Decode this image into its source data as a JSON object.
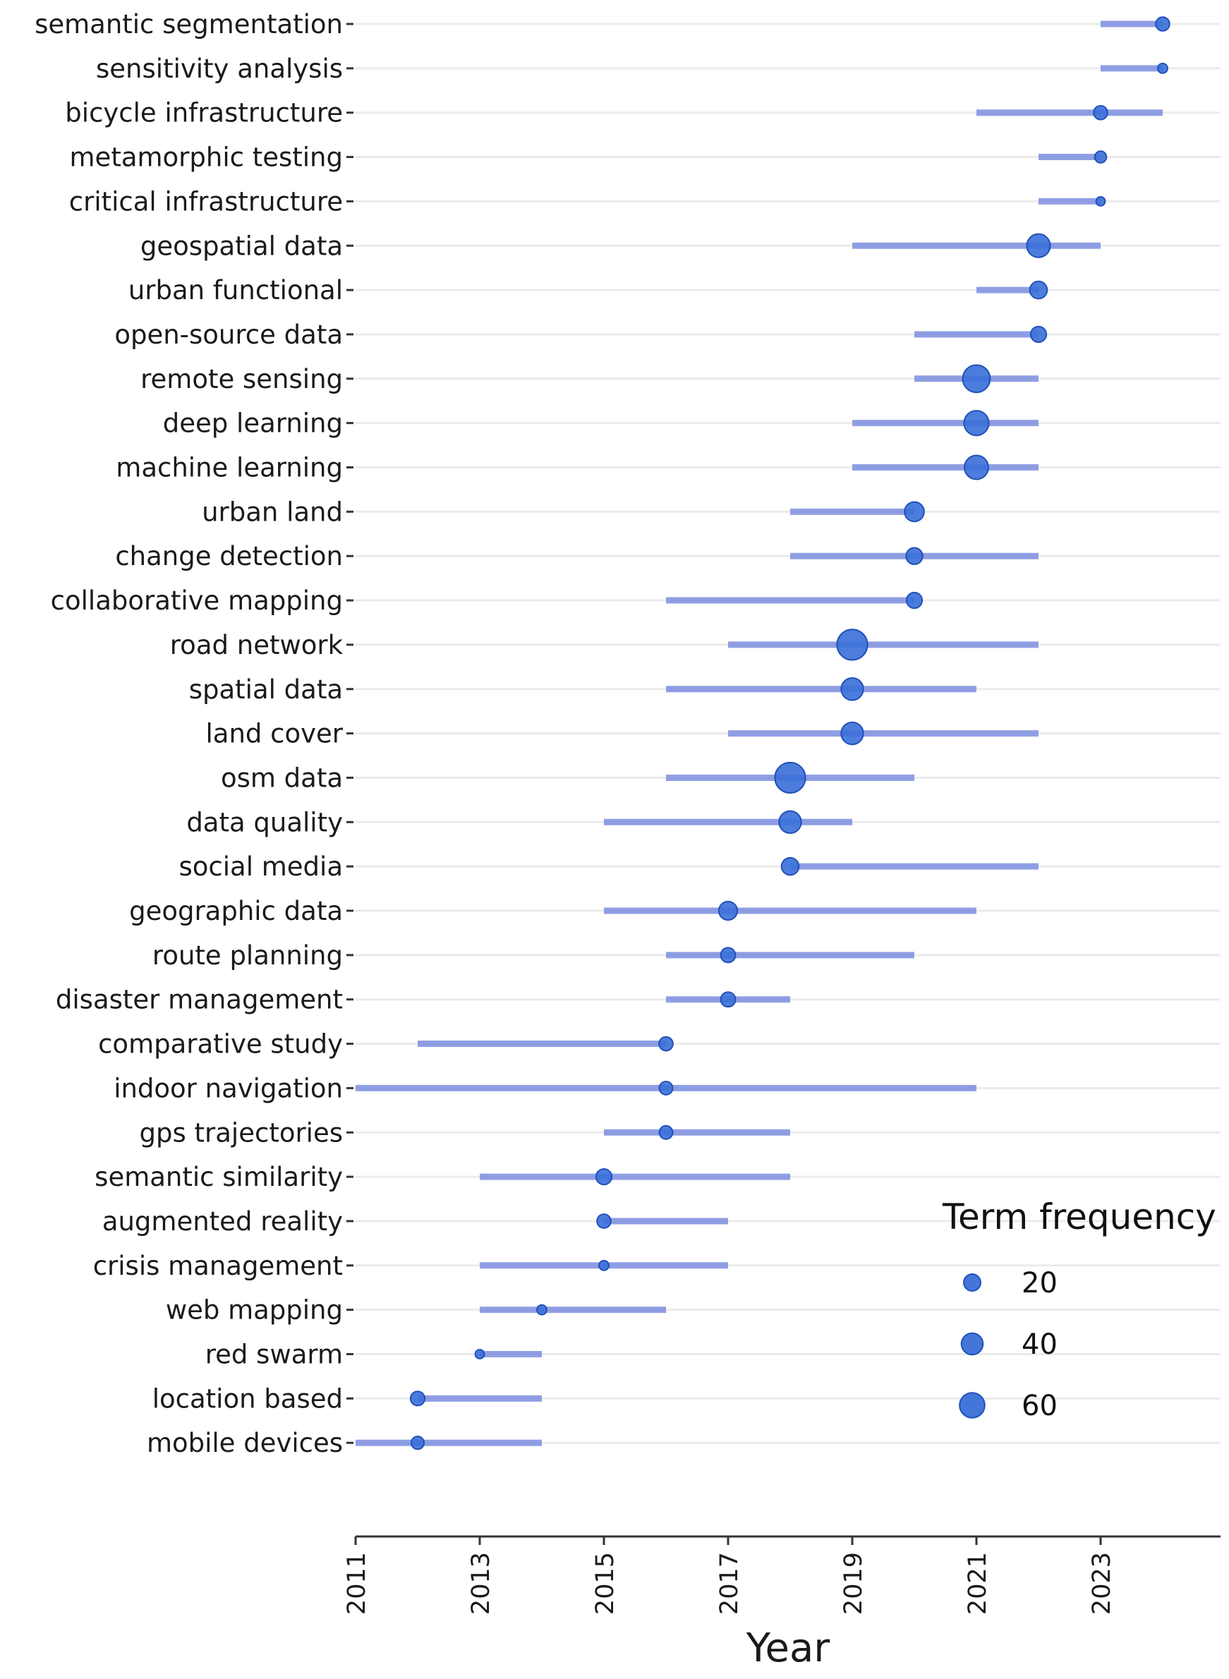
{
  "chart_data": {
    "type": "scatter",
    "xlabel": "Year",
    "x_ticks": [
      2011,
      2013,
      2015,
      2017,
      2019,
      2021,
      2023
    ],
    "xlim": [
      2011,
      2024.9
    ],
    "legend": {
      "title": "Term frequency",
      "position": "bottom-right",
      "entries": [
        {
          "label": "20",
          "value": 20
        },
        {
          "label": "40",
          "value": 40
        },
        {
          "label": "60",
          "value": 60
        }
      ]
    },
    "colors": {
      "bubble": "#3a6fd8",
      "bubble_stroke": "#2150b8",
      "range": "#7d8fe0",
      "grid": "#ebebeb",
      "axis": "#333333"
    },
    "terms": [
      {
        "term": "semantic segmentation",
        "start": 2023,
        "end": 2024,
        "median": 2024,
        "freq": 14
      },
      {
        "term": "sensitivity analysis",
        "start": 2023,
        "end": 2024,
        "median": 2024,
        "freq": 7
      },
      {
        "term": "bicycle infrastructure",
        "start": 2021,
        "end": 2024,
        "median": 2023,
        "freq": 14
      },
      {
        "term": "metamorphic testing",
        "start": 2022,
        "end": 2023,
        "median": 2023,
        "freq": 10
      },
      {
        "term": "critical infrastructure",
        "start": 2022,
        "end": 2023,
        "median": 2023,
        "freq": 6
      },
      {
        "term": "geospatial data",
        "start": 2019,
        "end": 2023,
        "median": 2022,
        "freq": 40
      },
      {
        "term": "urban functional",
        "start": 2021,
        "end": 2022,
        "median": 2022,
        "freq": 22
      },
      {
        "term": "open-source data",
        "start": 2020,
        "end": 2022,
        "median": 2022,
        "freq": 18
      },
      {
        "term": "remote sensing",
        "start": 2020,
        "end": 2022,
        "median": 2021,
        "freq": 55
      },
      {
        "term": "deep learning",
        "start": 2019,
        "end": 2022,
        "median": 2021,
        "freq": 45
      },
      {
        "term": "machine learning",
        "start": 2019,
        "end": 2022,
        "median": 2021,
        "freq": 42
      },
      {
        "term": "urban land",
        "start": 2018,
        "end": 2020,
        "median": 2020,
        "freq": 28
      },
      {
        "term": "change detection",
        "start": 2018,
        "end": 2022,
        "median": 2020,
        "freq": 20
      },
      {
        "term": "collaborative mapping",
        "start": 2016,
        "end": 2020,
        "median": 2020,
        "freq": 18
      },
      {
        "term": "road network",
        "start": 2017,
        "end": 2022,
        "median": 2019,
        "freq": 68
      },
      {
        "term": "spatial data",
        "start": 2016,
        "end": 2021,
        "median": 2019,
        "freq": 36
      },
      {
        "term": "land cover",
        "start": 2017,
        "end": 2022,
        "median": 2019,
        "freq": 36
      },
      {
        "term": "osm data",
        "start": 2016,
        "end": 2020,
        "median": 2018,
        "freq": 68
      },
      {
        "term": "data quality",
        "start": 2015,
        "end": 2019,
        "median": 2018,
        "freq": 36
      },
      {
        "term": "social media",
        "start": 2018,
        "end": 2022,
        "median": 2018,
        "freq": 22
      },
      {
        "term": "geographic data",
        "start": 2015,
        "end": 2021,
        "median": 2017,
        "freq": 25
      },
      {
        "term": "route planning",
        "start": 2016,
        "end": 2020,
        "median": 2017,
        "freq": 16
      },
      {
        "term": "disaster management",
        "start": 2016,
        "end": 2018,
        "median": 2017,
        "freq": 16
      },
      {
        "term": "comparative study",
        "start": 2012,
        "end": 2016,
        "median": 2016,
        "freq": 14
      },
      {
        "term": "indoor navigation",
        "start": 2011,
        "end": 2021,
        "median": 2016,
        "freq": 13
      },
      {
        "term": "gps trajectories",
        "start": 2015,
        "end": 2018,
        "median": 2016,
        "freq": 13
      },
      {
        "term": "semantic similarity",
        "start": 2013,
        "end": 2018,
        "median": 2015,
        "freq": 18
      },
      {
        "term": "augmented reality",
        "start": 2015,
        "end": 2017,
        "median": 2015,
        "freq": 14
      },
      {
        "term": "crisis management",
        "start": 2013,
        "end": 2017,
        "median": 2015,
        "freq": 7
      },
      {
        "term": "web mapping",
        "start": 2013,
        "end": 2016,
        "median": 2014,
        "freq": 7
      },
      {
        "term": "red swarm",
        "start": 2013,
        "end": 2014,
        "median": 2013,
        "freq": 6
      },
      {
        "term": "location based",
        "start": 2012,
        "end": 2014,
        "median": 2012,
        "freq": 15
      },
      {
        "term": "mobile devices",
        "start": 2011,
        "end": 2014,
        "median": 2012,
        "freq": 12
      }
    ]
  }
}
